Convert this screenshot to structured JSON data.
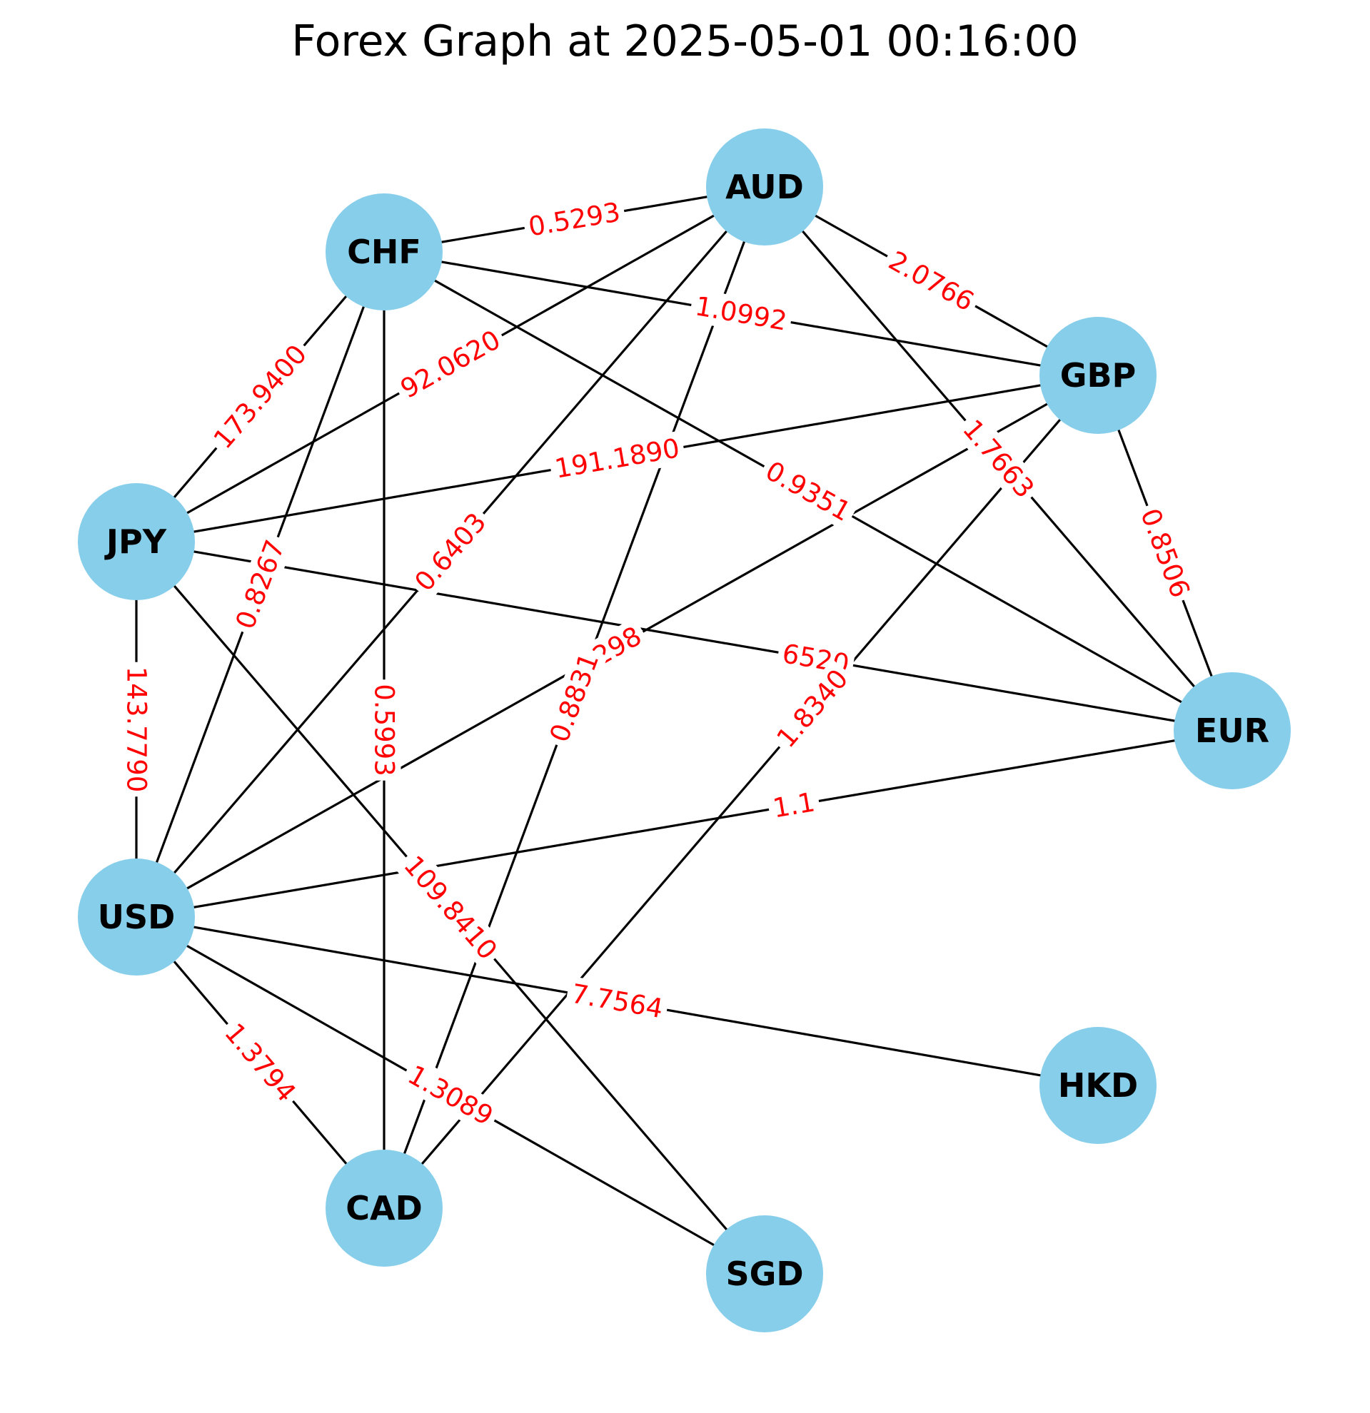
{
  "title": "Forex Graph at 2025-05-01 00:16:00",
  "colors": {
    "node_fill": "#87ceeb",
    "edge": "#000000",
    "edge_label": "#ff0000",
    "node_label": "#000000"
  },
  "nodes": [
    {
      "id": "AUD",
      "label": "AUD"
    },
    {
      "id": "CHF",
      "label": "CHF"
    },
    {
      "id": "GBP",
      "label": "GBP"
    },
    {
      "id": "JPY",
      "label": "JPY"
    },
    {
      "id": "EUR",
      "label": "EUR"
    },
    {
      "id": "USD",
      "label": "USD"
    },
    {
      "id": "HKD",
      "label": "HKD"
    },
    {
      "id": "CAD",
      "label": "CAD"
    },
    {
      "id": "SGD",
      "label": "SGD"
    }
  ],
  "edges": [
    {
      "source": "CHF",
      "target": "AUD",
      "label": "0.5293"
    },
    {
      "source": "AUD",
      "target": "GBP",
      "label": "2.0766"
    },
    {
      "source": "CHF",
      "target": "GBP",
      "label": "1.0992"
    },
    {
      "source": "JPY",
      "target": "CHF",
      "label": "173.9400"
    },
    {
      "source": "JPY",
      "target": "AUD",
      "label": "92.0620"
    },
    {
      "source": "AUD",
      "target": "EUR",
      "label": "1.7663"
    },
    {
      "source": "JPY",
      "target": "GBP",
      "label": "191.1890"
    },
    {
      "source": "CHF",
      "target": "EUR",
      "label": "0.9351"
    },
    {
      "source": "GBP",
      "target": "EUR",
      "label": "0.8506"
    },
    {
      "source": "USD",
      "target": "CHF",
      "label": "0.8267"
    },
    {
      "source": "USD",
      "target": "AUD",
      "label": "0.6403"
    },
    {
      "source": "JPY",
      "target": "EUR",
      "label": "6520"
    },
    {
      "source": "USD",
      "target": "GBP",
      "label": "298"
    },
    {
      "source": "CAD",
      "target": "AUD",
      "label": "0.8831"
    },
    {
      "source": "CHF",
      "target": "CAD",
      "label": "0.5993"
    },
    {
      "source": "JPY",
      "target": "USD",
      "label": "143.7790"
    },
    {
      "source": "CAD",
      "target": "GBP",
      "label": "1.8340"
    },
    {
      "source": "USD",
      "target": "EUR",
      "label": "1.1"
    },
    {
      "source": "JPY",
      "target": "SGD",
      "label": "109.8410"
    },
    {
      "source": "USD",
      "target": "HKD",
      "label": "7.7564"
    },
    {
      "source": "USD",
      "target": "CAD",
      "label": "1.3794"
    },
    {
      "source": "USD",
      "target": "SGD",
      "label": "1.3089"
    }
  ]
}
